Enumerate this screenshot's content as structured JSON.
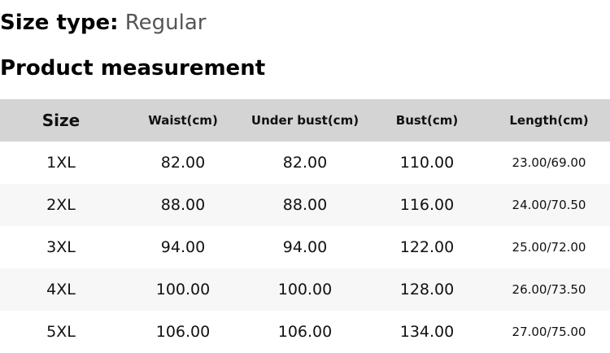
{
  "size_type": {
    "label": "Size type:",
    "value": "Regular"
  },
  "heading": "Product measurement",
  "table": {
    "headers": [
      "Size",
      "Waist(cm)",
      "Under bust(cm)",
      "Bust(cm)",
      "Length(cm)"
    ],
    "rows": [
      [
        "1XL",
        "82.00",
        "82.00",
        "110.00",
        "23.00/69.00"
      ],
      [
        "2XL",
        "88.00",
        "88.00",
        "116.00",
        "24.00/70.50"
      ],
      [
        "3XL",
        "94.00",
        "94.00",
        "122.00",
        "25.00/72.00"
      ],
      [
        "4XL",
        "100.00",
        "100.00",
        "128.00",
        "26.00/73.50"
      ],
      [
        "5XL",
        "106.00",
        "106.00",
        "134.00",
        "27.00/75.00"
      ]
    ]
  }
}
